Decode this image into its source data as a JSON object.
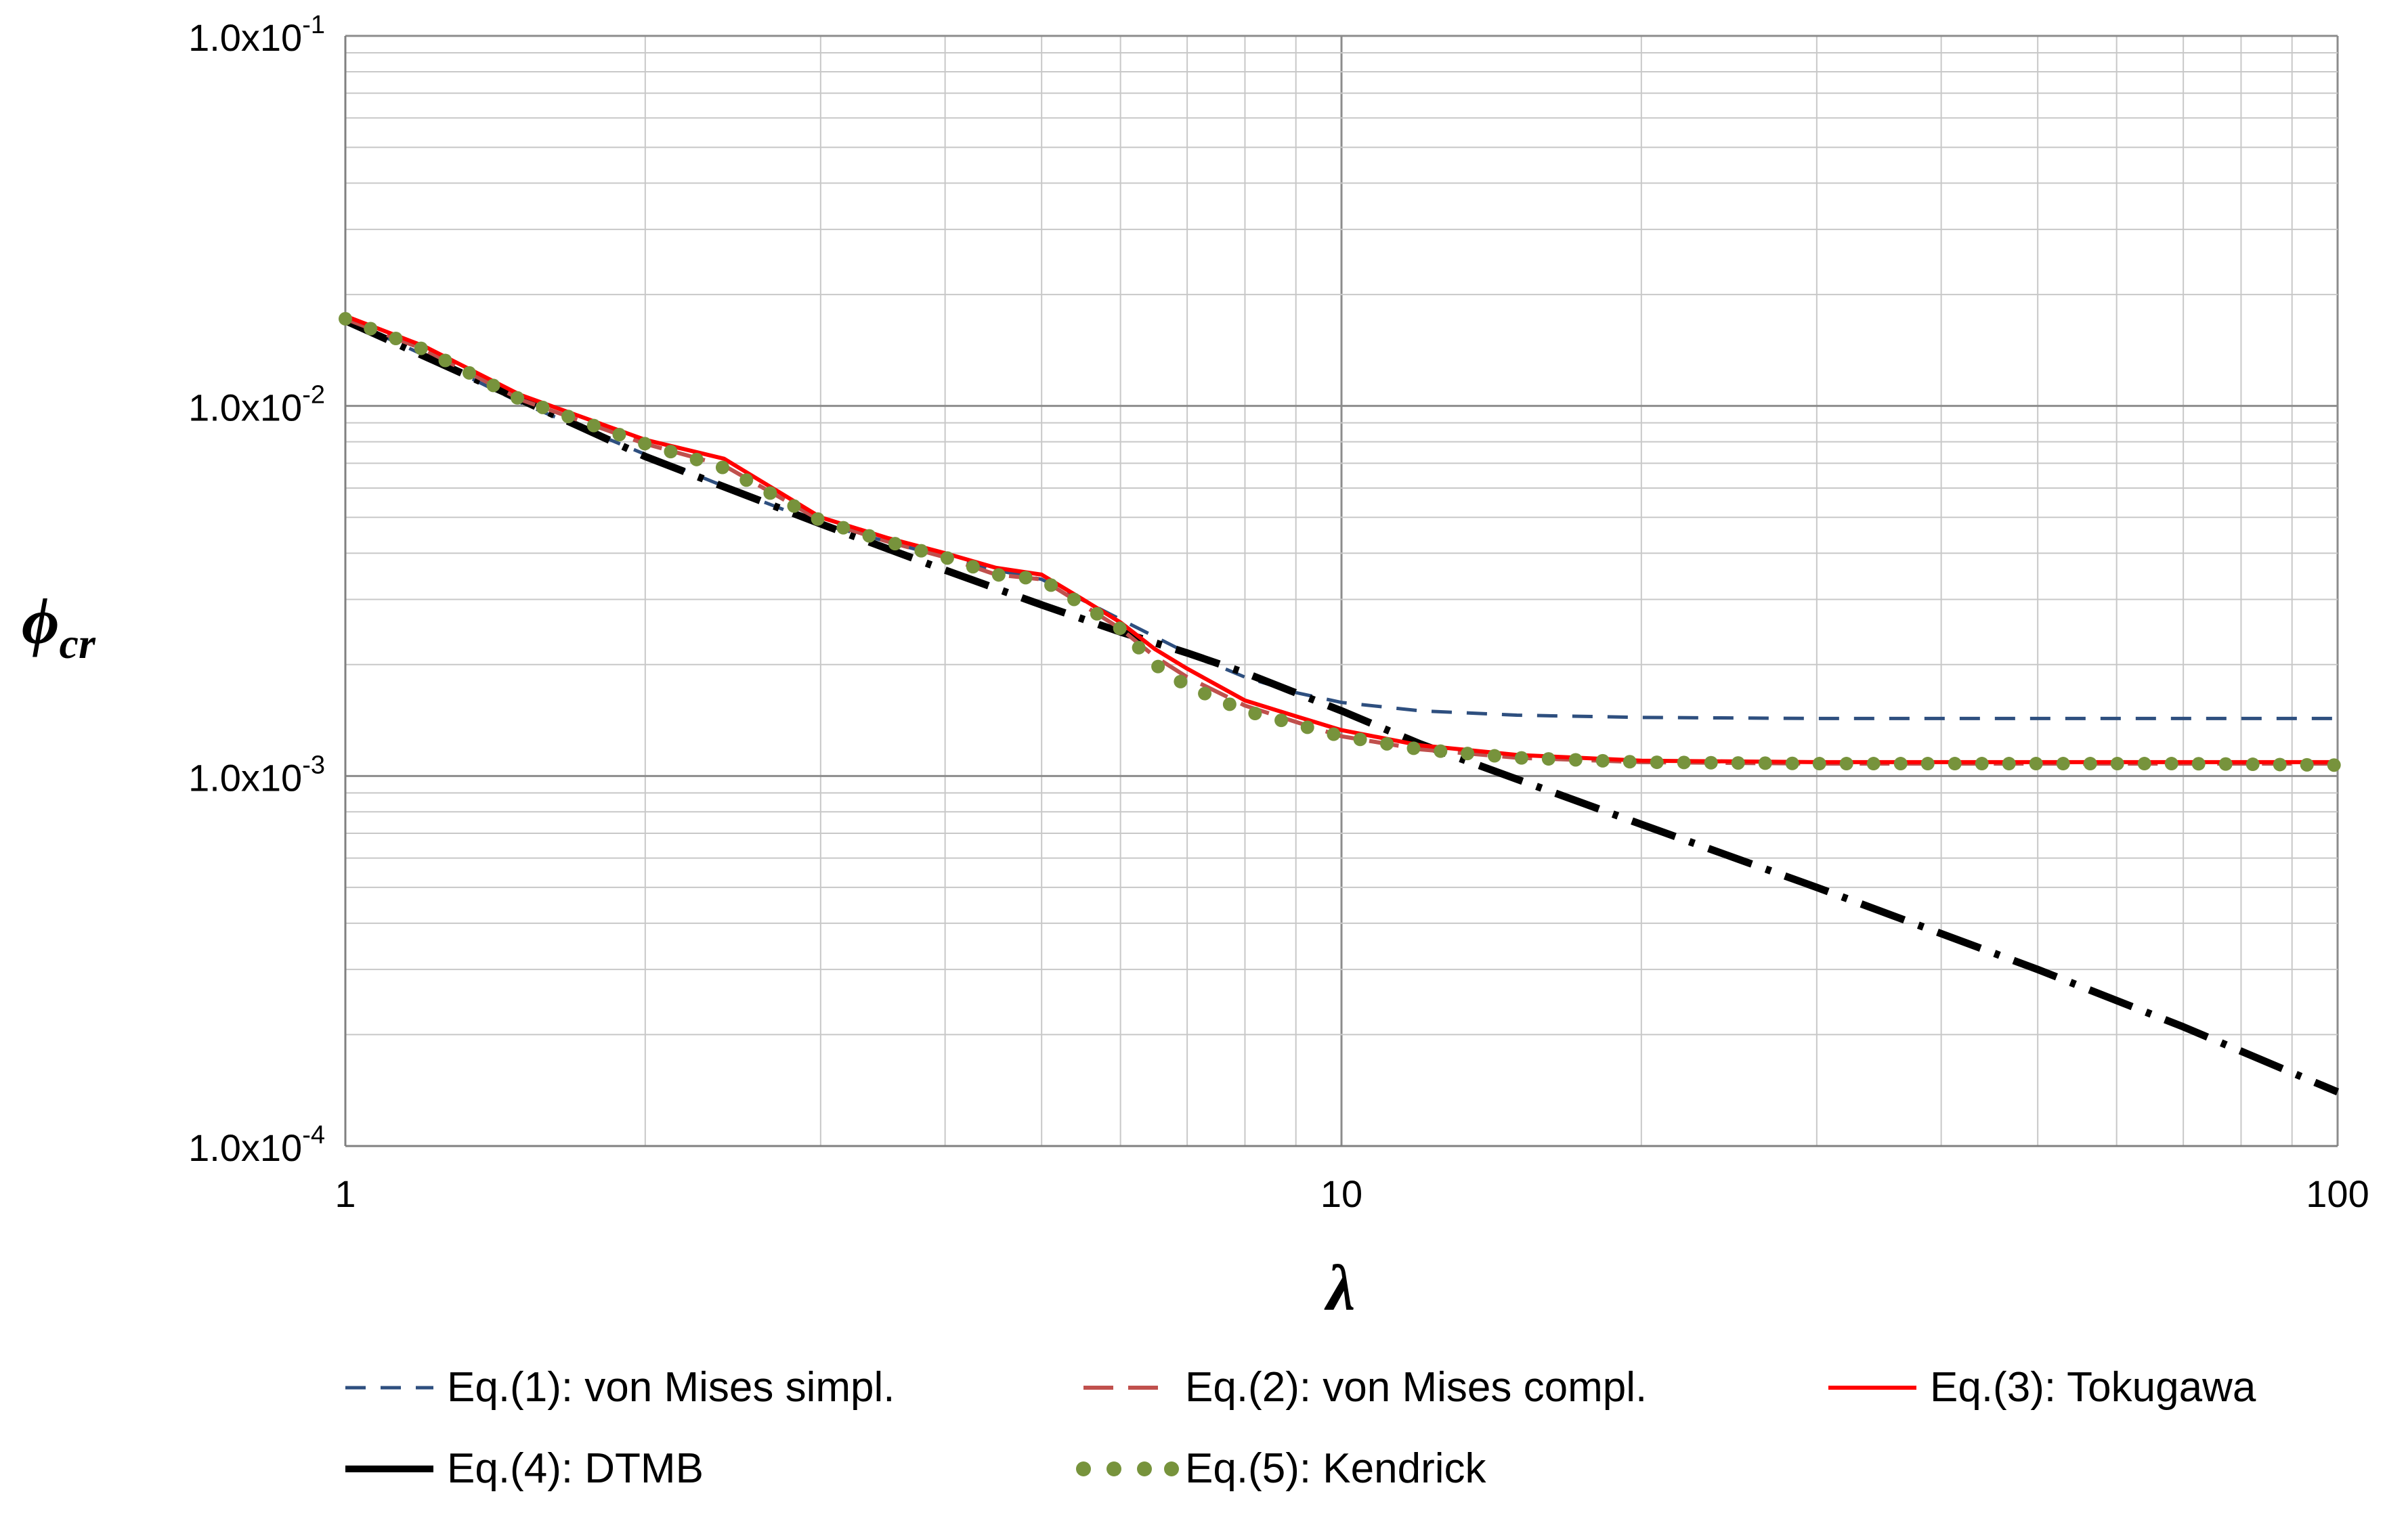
{
  "chart_data": {
    "type": "line",
    "x_scale": "log",
    "y_scale": "log",
    "xlim": [
      1,
      100
    ],
    "ylim": [
      0.0001,
      0.1
    ],
    "grid": true,
    "legend_position": "bottom",
    "xlabel": "λ",
    "ylabel": "ϕ",
    "ylabel_sub": "cr",
    "x_ticks": [
      {
        "value": 1,
        "label": "1"
      },
      {
        "value": 10,
        "label": "10"
      },
      {
        "value": 100,
        "label": "100"
      }
    ],
    "y_ticks": [
      {
        "value": 0.1,
        "base": "1.0x10",
        "exp": "-1"
      },
      {
        "value": 0.01,
        "base": "1.0x10",
        "exp": "-2"
      },
      {
        "value": 0.001,
        "base": "1.0x10",
        "exp": "-3"
      },
      {
        "value": 0.0001,
        "base": "1.0x10",
        "exp": "-4"
      }
    ],
    "series": [
      {
        "name": "Eq.(1): von Mises simpl.",
        "color": "#2e4f7f",
        "style": "dashed",
        "x": [
          1,
          1.2,
          1.5,
          2,
          2.5,
          3,
          3.5,
          4,
          4.5,
          5,
          6,
          7,
          8,
          9,
          10,
          12,
          15,
          20,
          30,
          50,
          70,
          100
        ],
        "y": [
          0.0172,
          0.0137,
          0.0102,
          0.0074,
          0.0058,
          0.0048,
          0.0043,
          0.0039,
          0.0036,
          0.0034,
          0.00265,
          0.00215,
          0.00185,
          0.00168,
          0.00158,
          0.0015,
          0.00146,
          0.00144,
          0.00143,
          0.00143,
          0.00143,
          0.00143
        ]
      },
      {
        "name": "Eq.(2): von Mises compl.",
        "color": "#c0504d",
        "style": "dashed",
        "x": [
          1,
          1.2,
          1.5,
          2,
          2.4,
          3,
          3.5,
          4,
          4.5,
          5,
          5.5,
          6,
          6.5,
          7,
          8,
          9,
          10,
          12,
          15,
          20,
          30,
          50,
          70,
          100
        ],
        "y": [
          0.0172,
          0.0142,
          0.0104,
          0.0079,
          0.0069,
          0.0049,
          0.0043,
          0.0039,
          0.0035,
          0.0034,
          0.0029,
          0.0025,
          0.0021,
          0.00185,
          0.00155,
          0.0014,
          0.00128,
          0.00118,
          0.00112,
          0.00109,
          0.00108,
          0.00108,
          0.00108,
          0.00108
        ]
      },
      {
        "name": "Eq.(3): Tokugawa",
        "color": "#ff0000",
        "style": "solid",
        "x": [
          1,
          1.2,
          1.5,
          2,
          2.4,
          3,
          3.5,
          4,
          4.5,
          5,
          5.5,
          6,
          6.5,
          7,
          8,
          9,
          10,
          12,
          15,
          20,
          30,
          50,
          70,
          100
        ],
        "y": [
          0.0175,
          0.0145,
          0.0107,
          0.0081,
          0.0072,
          0.005,
          0.0044,
          0.004,
          0.00365,
          0.0035,
          0.003,
          0.0026,
          0.0022,
          0.00195,
          0.0016,
          0.00145,
          0.00133,
          0.00121,
          0.00114,
          0.0011,
          0.00109,
          0.00109,
          0.00109,
          0.00109
        ]
      },
      {
        "name": "Eq.(4): DTMB",
        "color": "#000000",
        "style": "dashdot",
        "x": [
          1,
          1.5,
          2,
          3,
          4,
          5,
          6,
          7,
          8,
          10,
          12,
          15,
          20,
          30,
          50,
          70,
          100
        ],
        "y": [
          0.017,
          0.0104,
          0.0073,
          0.0048,
          0.0036,
          0.0029,
          0.00245,
          0.00215,
          0.0019,
          0.0015,
          0.00122,
          0.00098,
          0.00074,
          0.0005,
          0.0003,
          0.00021,
          0.00014
        ]
      },
      {
        "name": "Eq.(5): Kendrick",
        "color": "#77933c",
        "style": "dotted",
        "x": [
          1,
          1.2,
          1.5,
          2,
          2.4,
          3,
          3.5,
          4,
          4.5,
          5,
          5.5,
          6,
          6.5,
          7,
          8,
          9,
          10,
          12,
          15,
          20,
          30,
          50,
          70,
          100
        ],
        "y": [
          0.0172,
          0.0142,
          0.0104,
          0.0079,
          0.0068,
          0.0049,
          0.0043,
          0.0039,
          0.0035,
          0.0034,
          0.0029,
          0.0025,
          0.002,
          0.00175,
          0.0015,
          0.00138,
          0.00128,
          0.00118,
          0.00112,
          0.00109,
          0.00108,
          0.00108,
          0.00108,
          0.00107
        ]
      }
    ]
  }
}
